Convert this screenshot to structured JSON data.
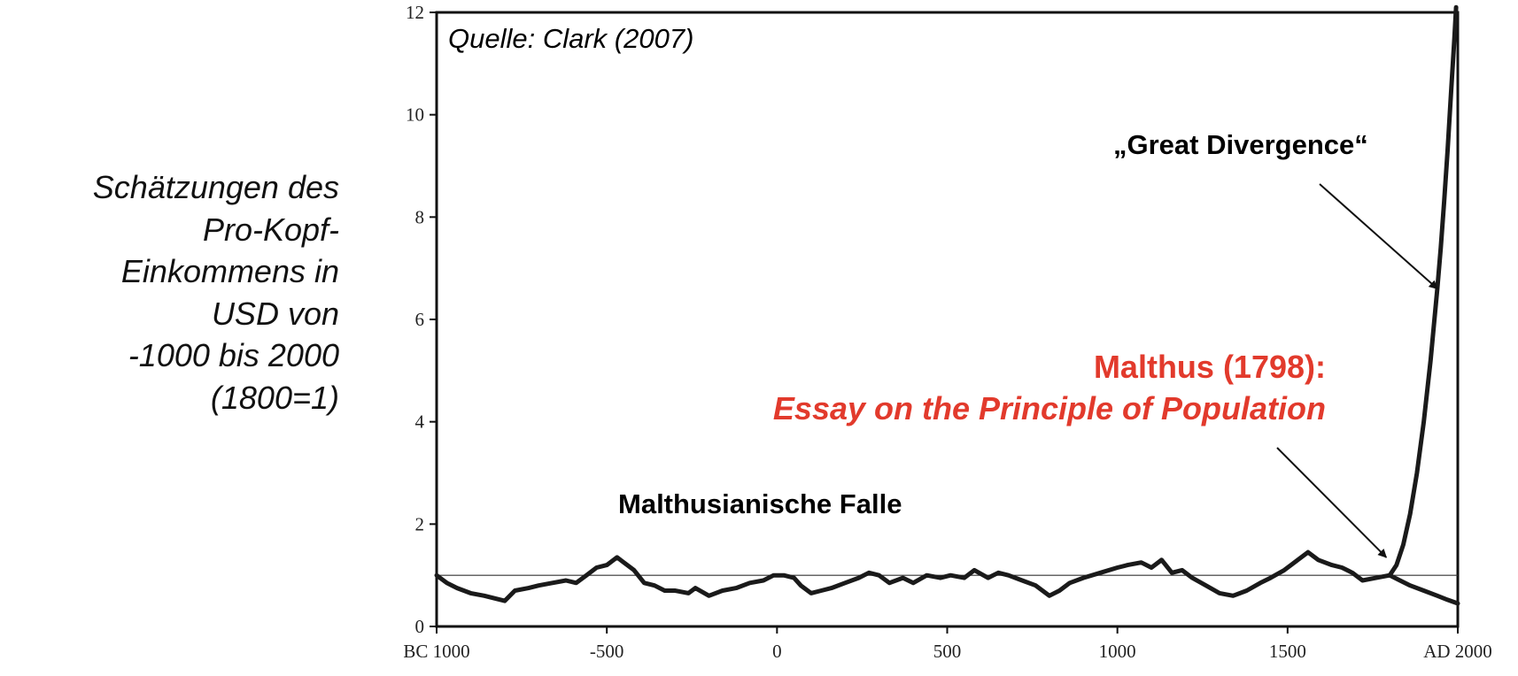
{
  "ylabel_lines": [
    "Schätzungen des",
    "Pro-Kopf-",
    "Einkommens in",
    "USD von",
    "-1000 bis 2000",
    "(1800=1)"
  ],
  "chart_data": {
    "type": "line",
    "source": "Quelle: Clark (2007)",
    "xlim": [
      -1000,
      2000
    ],
    "ylim": [
      0,
      12
    ],
    "x_ticks": [
      -1000,
      -500,
      0,
      500,
      1000,
      1500,
      2000
    ],
    "x_tick_labels": [
      "BC 1000",
      "-500",
      "0",
      "500",
      "1000",
      "1500",
      "AD 2000"
    ],
    "y_ticks": [
      0,
      2,
      4,
      6,
      8,
      10,
      12
    ],
    "y_tick_labels": [
      "0",
      "2",
      "4",
      "6",
      "8",
      "10",
      "12"
    ],
    "reference_line_y": 1,
    "series": [
      {
        "x": [
          -1000,
          -970,
          -940,
          -900,
          -860,
          -830,
          -800,
          -770,
          -730,
          -700,
          -660,
          -620,
          -590,
          -560,
          -530,
          -500,
          -470,
          -450,
          -420,
          -390,
          -360,
          -330,
          -300,
          -260,
          -240,
          -200,
          -160,
          -120,
          -80,
          -40,
          -10,
          20,
          50,
          70,
          100,
          130,
          160,
          200,
          240,
          270,
          300,
          330,
          370,
          400,
          440,
          480,
          510,
          550,
          580,
          620,
          650,
          680,
          720,
          760,
          800,
          830,
          860,
          900,
          950,
          1000,
          1030,
          1070,
          1100,
          1130,
          1160,
          1190,
          1220,
          1260,
          1300,
          1340,
          1380,
          1420,
          1450,
          1490,
          1530,
          1560,
          1590,
          1630,
          1660,
          1690,
          1720,
          1760,
          1800
        ],
        "y": [
          1.0,
          0.85,
          0.75,
          0.65,
          0.6,
          0.55,
          0.5,
          0.7,
          0.75,
          0.8,
          0.85,
          0.9,
          0.85,
          1.0,
          1.15,
          1.2,
          1.35,
          1.25,
          1.1,
          0.85,
          0.8,
          0.7,
          0.7,
          0.65,
          0.75,
          0.6,
          0.7,
          0.75,
          0.85,
          0.9,
          1.0,
          1.0,
          0.95,
          0.8,
          0.65,
          0.7,
          0.75,
          0.85,
          0.95,
          1.05,
          1.0,
          0.85,
          0.95,
          0.85,
          1.0,
          0.95,
          1.0,
          0.95,
          1.1,
          0.95,
          1.05,
          1.0,
          0.9,
          0.8,
          0.6,
          0.7,
          0.85,
          0.95,
          1.05,
          1.15,
          1.2,
          1.25,
          1.15,
          1.3,
          1.05,
          1.1,
          0.95,
          0.8,
          0.65,
          0.6,
          0.7,
          0.85,
          0.95,
          1.1,
          1.3,
          1.45,
          1.3,
          1.2,
          1.15,
          1.05,
          0.9,
          0.95,
          1.0
        ]
      },
      {
        "x": [
          1800,
          1830,
          1860,
          1900,
          1940,
          1970,
          2000
        ],
        "y": [
          1.0,
          0.9,
          0.8,
          0.7,
          0.6,
          0.52,
          0.45
        ]
      },
      {
        "x": [
          1800,
          1820,
          1840,
          1860,
          1880,
          1900,
          1920,
          1940,
          1950,
          1960,
          1970,
          1980,
          1990,
          1995
        ],
        "y": [
          1.0,
          1.2,
          1.6,
          2.2,
          3.0,
          4.0,
          5.2,
          6.6,
          7.4,
          8.3,
          9.3,
          10.4,
          11.5,
          12.1
        ]
      }
    ],
    "annotations": [
      {
        "text": "„Great Divergence“",
        "x": 1600,
        "y": 9.4,
        "arrow_to": [
          1940,
          6.6
        ]
      },
      {
        "text": "Malthus (1798):",
        "x": 1640,
        "y": 5.0,
        "color": "#e23a2c",
        "arrow_to": [
          1790,
          1.35
        ]
      },
      {
        "text": "Essay on the Principle of Population",
        "x": 1640,
        "y": 4.2,
        "color": "#e23a2c"
      },
      {
        "text": "Malthusianische Falle",
        "x": -460,
        "y": 2.35
      }
    ]
  }
}
